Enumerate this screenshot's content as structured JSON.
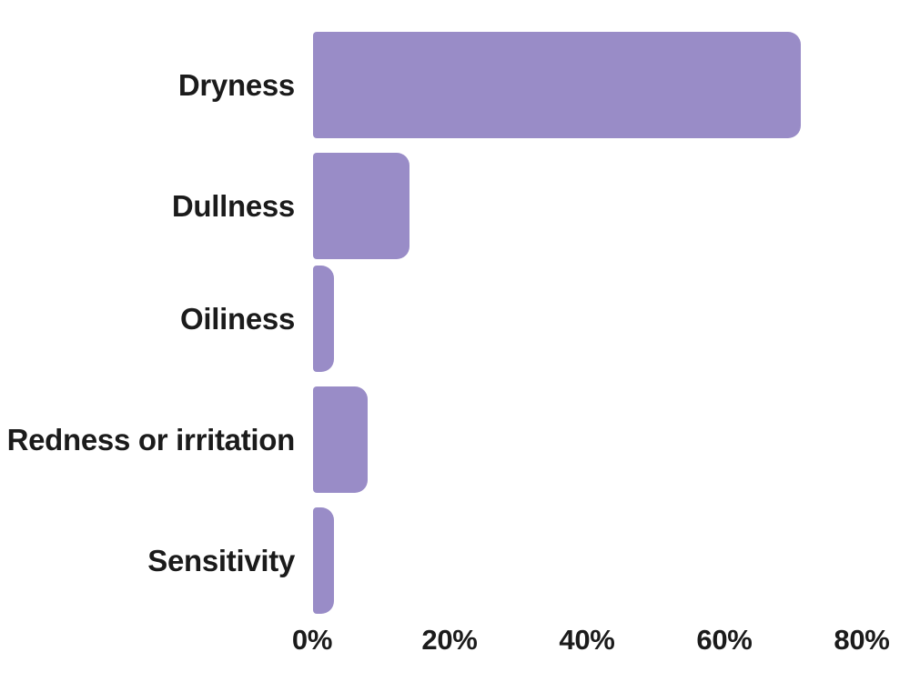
{
  "chart_data": {
    "type": "bar",
    "orientation": "horizontal",
    "title": "",
    "categories": [
      "Dryness",
      "Dullness",
      "Oiliness",
      "Redness or irritation",
      "Sensitivity"
    ],
    "values": [
      71,
      14,
      3,
      8,
      3
    ],
    "unit": "%",
    "xlabel": "",
    "ylabel": "",
    "xlim": [
      0,
      80
    ],
    "x_ticks": [
      0,
      20,
      40,
      60,
      80
    ],
    "x_tick_labels": [
      "0%",
      "20%",
      "40%",
      "60%",
      "80%"
    ],
    "grid": false,
    "legend": false
  },
  "colors": {
    "bar": "#998cc7",
    "text": "#1b1b1b",
    "background": "#ffffff"
  }
}
